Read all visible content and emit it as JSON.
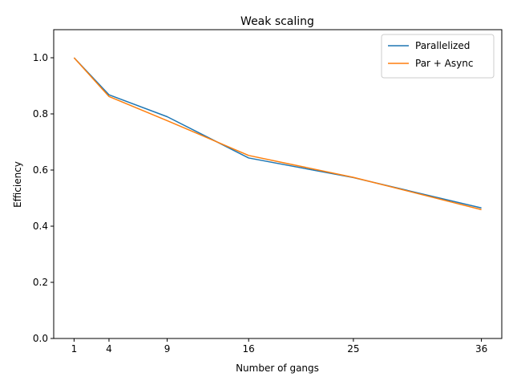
{
  "chart_data": {
    "type": "line",
    "title": "Weak scaling",
    "xlabel": "Number of gangs",
    "ylabel": "Efficiency",
    "x": [
      1,
      4,
      9,
      16,
      25,
      36
    ],
    "xticks": [
      1,
      4,
      9,
      16,
      25,
      36
    ],
    "yticks": [
      0.0,
      0.2,
      0.4,
      0.6,
      0.8,
      1.0
    ],
    "xlim": [
      -0.75,
      37.75
    ],
    "ylim": [
      0,
      1.1
    ],
    "grid": false,
    "legend_position": "top-right",
    "series": [
      {
        "name": "Parallelized",
        "color": "#1f77b4",
        "values": [
          1.0,
          0.868,
          0.79,
          0.643,
          0.573,
          0.465
        ]
      },
      {
        "name": "Par + Async",
        "color": "#ff7f0e",
        "values": [
          1.0,
          0.862,
          0.776,
          0.652,
          0.574,
          0.459
        ]
      }
    ]
  }
}
